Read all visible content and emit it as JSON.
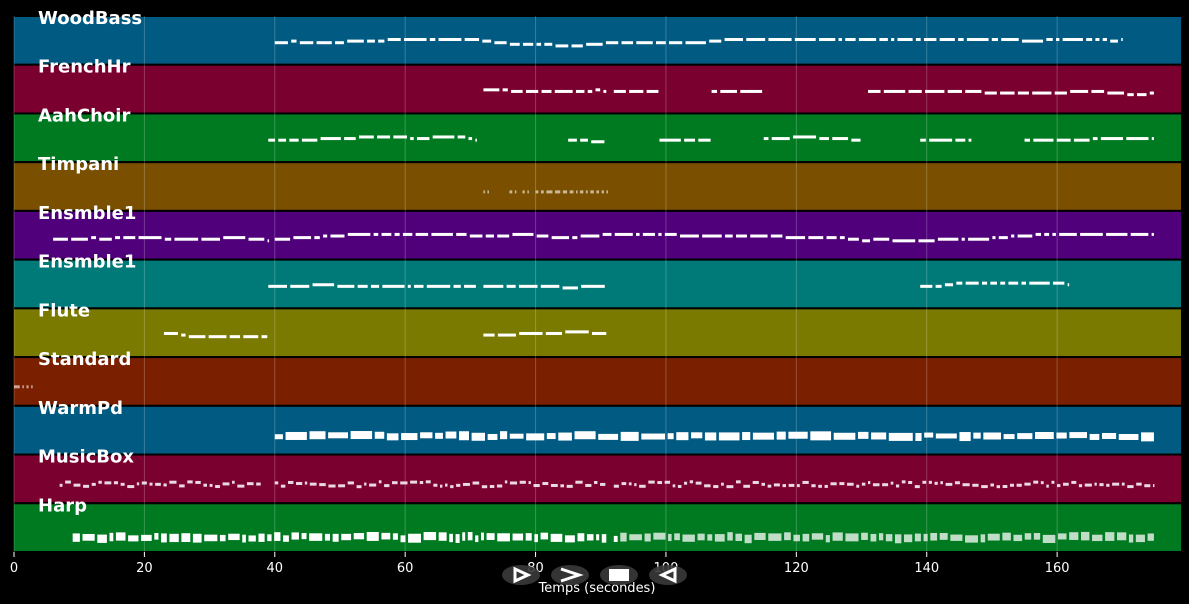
{
  "chart_data": {
    "type": "piano-roll",
    "xlabel": "Temps (secondes)",
    "xlim": [
      0,
      179
    ],
    "xticks": [
      0,
      20,
      40,
      60,
      80,
      100,
      120,
      140,
      160
    ],
    "grid": true,
    "tracks": [
      {
        "name": "WoodBass",
        "color": "#005a82",
        "segments": [
          [
            40,
            170
          ]
        ],
        "style": "dash"
      },
      {
        "name": "FrenchHr",
        "color": "#7a0030",
        "segments": [
          [
            72,
            91
          ],
          [
            92,
            99
          ],
          [
            107,
            115
          ],
          [
            131,
            175
          ]
        ],
        "style": "dash"
      },
      {
        "name": "AahChoir",
        "color": "#007a20",
        "segments": [
          [
            39,
            71
          ],
          [
            85,
            91
          ],
          [
            99,
            107
          ],
          [
            115,
            130
          ],
          [
            139,
            147
          ],
          [
            155,
            175
          ]
        ],
        "style": "dash"
      },
      {
        "name": "Timpani",
        "color": "#7a5000",
        "segments": [
          [
            72,
            73
          ],
          [
            76,
            77
          ],
          [
            78,
            79
          ],
          [
            80,
            91
          ]
        ],
        "style": "faint"
      },
      {
        "name": "Ensmble1",
        "color": "#50007a",
        "segments": [
          [
            6,
            39
          ],
          [
            40,
            175
          ]
        ],
        "style": "dash"
      },
      {
        "name": "Ensmble1",
        "color": "#007a78",
        "segments": [
          [
            39,
            71
          ],
          [
            72,
            91
          ],
          [
            139,
            162
          ]
        ],
        "style": "dash"
      },
      {
        "name": "Flute",
        "color": "#7a7a00",
        "segments": [
          [
            23,
            39
          ],
          [
            72,
            91
          ]
        ],
        "style": "dash"
      },
      {
        "name": "Standard",
        "color": "#7a2000",
        "segments": [
          [
            0,
            3
          ]
        ],
        "style": "faint"
      },
      {
        "name": "WarmPd",
        "color": "#005a82",
        "segments": [
          [
            40,
            175
          ]
        ],
        "style": "thick"
      },
      {
        "name": "MusicBox",
        "color": "#7a0030",
        "segments": [
          [
            7,
            38
          ],
          [
            40,
            91
          ],
          [
            92,
            175
          ]
        ],
        "style": "zigzag"
      },
      {
        "name": "Harp",
        "color": "#007a20",
        "segments": [
          [
            9,
            91
          ],
          [
            92,
            175
          ]
        ],
        "style": "blocks"
      }
    ]
  },
  "controls": [
    {
      "name": "play-forward-button",
      "icon": "play-right-icon"
    },
    {
      "name": "next-button",
      "icon": "chevron-right-icon"
    },
    {
      "name": "stop-button",
      "icon": "stop-icon"
    },
    {
      "name": "play-back-button",
      "icon": "play-left-icon"
    }
  ]
}
